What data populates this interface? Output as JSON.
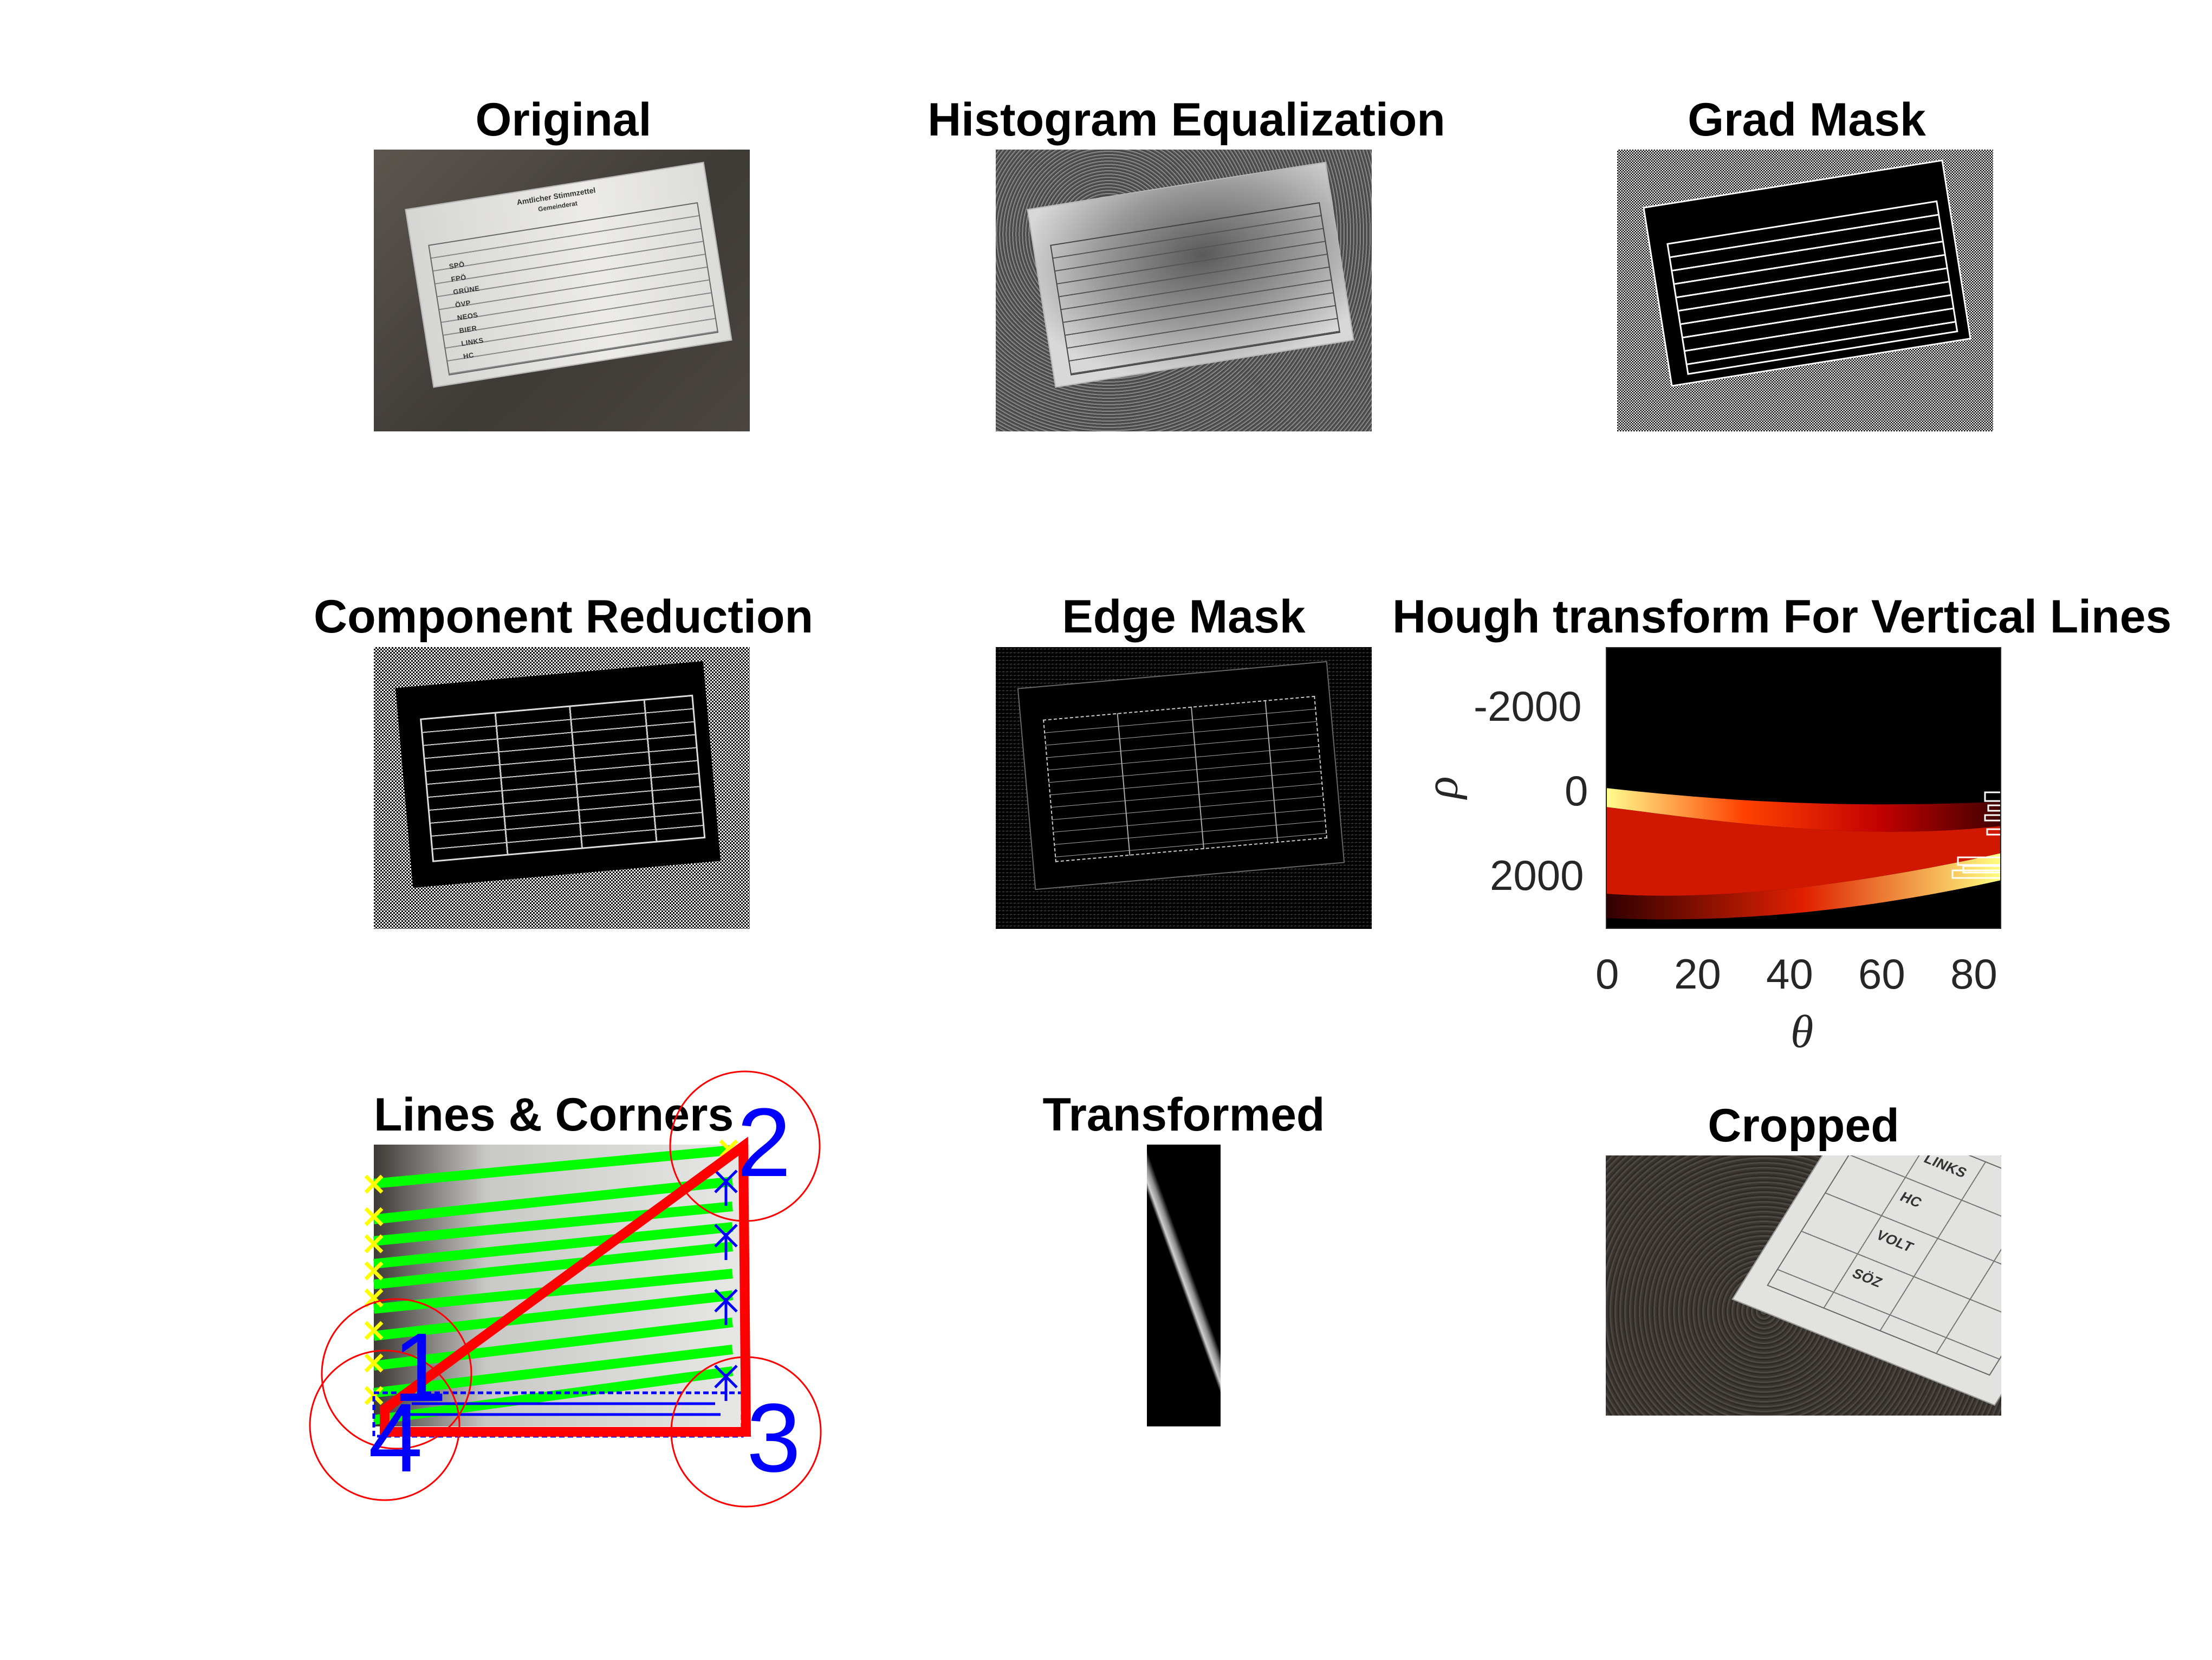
{
  "figure": {
    "titles": {
      "original": "Original",
      "histogram": "Histogram Equalization",
      "grad_mask": "Grad Mask",
      "component_reduction": "Component Reduction",
      "edge_mask": "Edge Mask",
      "hough": "Hough transform For Vertical Lines",
      "lines_corners": "Lines & Corners",
      "transformed": "Transformed",
      "cropped": "Cropped"
    },
    "ballot": {
      "heading": "Amtlicher Stimmzettel",
      "subheading": "Gemeinderat",
      "parties": [
        "SPÖ",
        "FPÖ",
        "GRÜNE",
        "ÖVP",
        "NEOS",
        "BIER",
        "LINKS",
        "HC",
        "VOLT",
        "SÖZ"
      ]
    },
    "cropped_parties": [
      "LINKS",
      "HC",
      "VOLT",
      "SÖZ"
    ],
    "corner_labels": [
      "1",
      "2",
      "3",
      "4"
    ],
    "colors": {
      "hough_low": "#000000",
      "hough_mid": "#e02000",
      "hough_high": "#ffff80",
      "lines": "#00ff00",
      "quad": "#ff0000",
      "markers_start": "#ffff00",
      "markers_end": "#0000ff",
      "corner_text": "#0000ff"
    }
  },
  "chart_data": {
    "type": "heatmap",
    "title": "Hough transform For Vertical Lines",
    "xlabel": "θ",
    "ylabel": "ρ",
    "xlim": [
      0,
      85
    ],
    "ylim": [
      -3300,
      3300
    ],
    "y_reversed": true,
    "xticks": [
      0,
      20,
      40,
      60,
      80
    ],
    "yticks": [
      -2000,
      0,
      2000
    ],
    "colormap": "hot"
  }
}
